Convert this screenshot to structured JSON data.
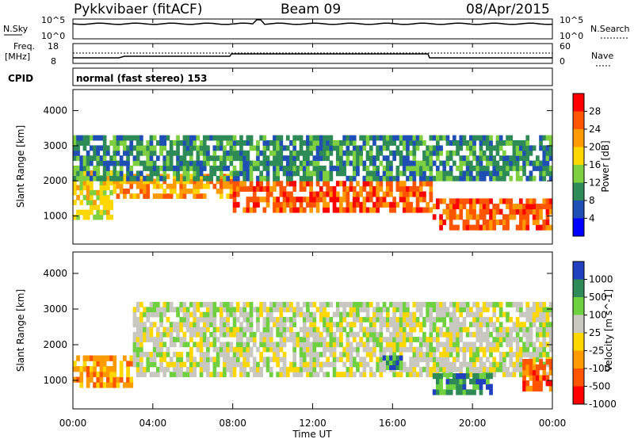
{
  "header": {
    "station": "Pykkvibaer (fitACF)",
    "beam": "Beam 09",
    "date": "08/Apr/2015"
  },
  "top_panels": {
    "nsky_label": "N.Sky",
    "nsky_ticks": [
      "10^5",
      "10^0"
    ],
    "nsearch_label": "N.Search",
    "nsearch_ticks": [
      "10^5",
      "10^0"
    ],
    "freq_label": "Freq.",
    "freq_unit": "[MHz]",
    "freq_ticks": [
      "18",
      "8"
    ],
    "nave_label": "Nave",
    "nave_ticks": [
      "60",
      "0"
    ],
    "cpid_label": "CPID",
    "cpid_value": "normal (fast stereo) 153"
  },
  "x_axis": {
    "title": "Time UT",
    "ticks": [
      "00:00",
      "04:00",
      "08:00",
      "12:00",
      "16:00",
      "20:00",
      "00:00"
    ]
  },
  "colors": {
    "power": [
      "#0000ff",
      "#1f4fb4",
      "#2e8b57",
      "#7fd040",
      "#ffd700",
      "#ff9a00",
      "#ff5500",
      "#ff0000"
    ],
    "velocity": [
      "#2040c0",
      "#2e8b57",
      "#6fd040",
      "#c8c8c0",
      "#ffd700",
      "#ff9a00",
      "#ff5500",
      "#ff0000"
    ]
  },
  "chart_data": [
    {
      "type": "heatmap",
      "panel": "power",
      "ylabel": "Slant Range [km]",
      "y_ticks": [
        "1000",
        "2000",
        "3000",
        "4000"
      ],
      "ylim": [
        200,
        4600
      ],
      "xlim_hours": [
        0,
        24
      ],
      "colorbar_label": "Power [dB]",
      "colorbar_ticks": [
        "4",
        "8",
        "12",
        "16",
        "20",
        "24",
        "28"
      ],
      "bands": [
        {
          "t0": 0.0,
          "t1": 2.0,
          "r0": 900,
          "r1": 2300,
          "level": 4
        },
        {
          "t0": 2.0,
          "t1": 8.0,
          "r0": 1500,
          "r1": 2200,
          "level": 5
        },
        {
          "t0": 8.0,
          "t1": 18.0,
          "r0": 1100,
          "r1": 2000,
          "level": 6
        },
        {
          "t0": 18.0,
          "t1": 24.0,
          "r0": 600,
          "r1": 1500,
          "level": 6
        },
        {
          "t0": 0.0,
          "t1": 24.0,
          "r0": 2000,
          "r1": 3300,
          "level": 2
        }
      ]
    },
    {
      "type": "heatmap",
      "panel": "velocity",
      "ylabel": "Slant Range [km]",
      "y_ticks": [
        "1000",
        "2000",
        "3000",
        "4000"
      ],
      "ylim": [
        200,
        4600
      ],
      "xlim_hours": [
        0,
        24
      ],
      "colorbar_label": "Velocity [m s^-1]",
      "colorbar_ticks": [
        "1000",
        "500",
        "100",
        "25",
        "-25",
        "-100",
        "-500",
        "-1000"
      ],
      "bands": [
        {
          "t0": 0.0,
          "t1": 3.0,
          "r0": 800,
          "r1": 1700,
          "level": 5
        },
        {
          "t0": 3.0,
          "t1": 24.0,
          "r0": 1100,
          "r1": 3200,
          "level": 3
        },
        {
          "t0": 15.5,
          "t1": 16.5,
          "r0": 1300,
          "r1": 1700,
          "level": 1
        },
        {
          "t0": 18.0,
          "t1": 21.0,
          "r0": 600,
          "r1": 1200,
          "level": 1
        },
        {
          "t0": 22.5,
          "t1": 24.0,
          "r0": 700,
          "r1": 1600,
          "level": 6
        }
      ]
    }
  ]
}
